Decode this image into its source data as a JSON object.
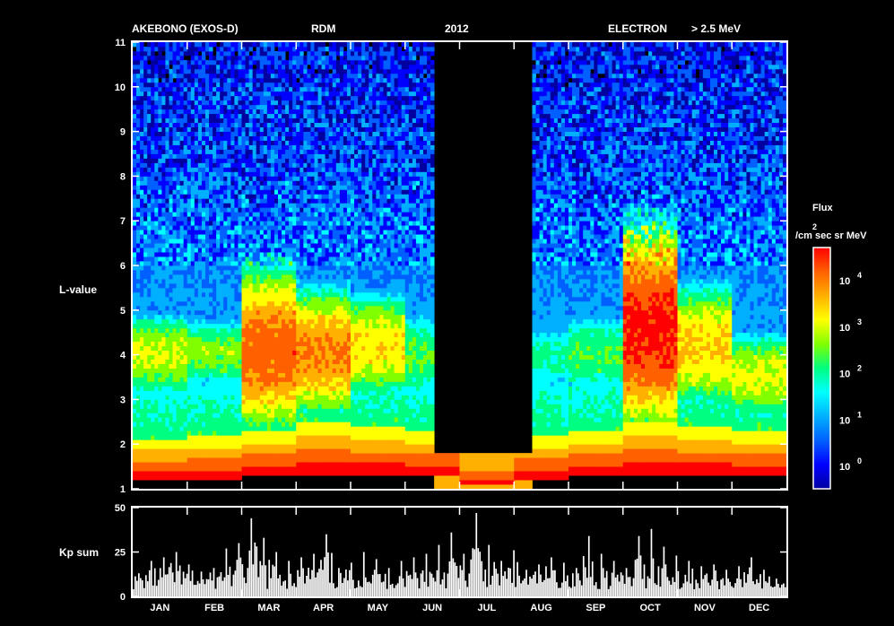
{
  "header": {
    "mission": "AKEBONO (EXOS-D)",
    "instrument": "RDM",
    "year": "2012",
    "species": "ELECTRON",
    "energy": "> 2.5 MeV"
  },
  "main_panel": {
    "ylabel": "L-value",
    "ylim": [
      1,
      11
    ],
    "yticks": [
      "1",
      "2",
      "3",
      "4",
      "5",
      "6",
      "7",
      "8",
      "9",
      "10",
      "11"
    ]
  },
  "colorbar": {
    "title": "Flux",
    "unit_exponent": "2",
    "unit": "/cm sec sr MeV",
    "tick_labels": [
      {
        "base": "10",
        "exp": "0"
      },
      {
        "base": "10",
        "exp": "1"
      },
      {
        "base": "10",
        "exp": "2"
      },
      {
        "base": "10",
        "exp": "3"
      },
      {
        "base": "10",
        "exp": "4"
      }
    ],
    "colors": [
      "#0000a0",
      "#0000ff",
      "#0060ff",
      "#00b0ff",
      "#00ffff",
      "#00ff80",
      "#80ff00",
      "#ffff00",
      "#ffb000",
      "#ff6000",
      "#ff0000"
    ]
  },
  "kp_panel": {
    "ylabel": "Kp sum",
    "yticks": [
      "0",
      "25",
      "50"
    ],
    "ylim": [
      0,
      50
    ]
  },
  "months": [
    "JAN",
    "FEB",
    "MAR",
    "APR",
    "MAY",
    "JUN",
    "JUL",
    "AUG",
    "SEP",
    "OCT",
    "NOV",
    "DEC"
  ],
  "chart_data": {
    "type": "heatmap",
    "title": "AKEBONO (EXOS-D) RDM 2012 ELECTRON > 2.5 MeV",
    "xlabel": "",
    "ylabel": "L-value",
    "x_categories": [
      "JAN",
      "FEB",
      "MAR",
      "APR",
      "MAY",
      "JUN",
      "JUL",
      "AUG",
      "SEP",
      "OCT",
      "NOV",
      "DEC"
    ],
    "ylim": [
      1,
      11
    ],
    "colorbar_log10_range": [
      -0.5,
      4.7
    ],
    "colorbar_label": "Flux /cm2 sec sr MeV",
    "data_gap": {
      "start_month_fraction": 5.55,
      "end_month_fraction": 7.35,
      "note": "no data"
    },
    "flux_profile_by_month": [
      {
        "month": "JAN",
        "inner_belt_L": [
          1.2,
          2.1
        ],
        "outer_belt_L": [
          3.6,
          4.4
        ],
        "outer_peak_log_flux": 2.9
      },
      {
        "month": "FEB",
        "inner_belt_L": [
          1.2,
          2.2
        ],
        "outer_belt_L": [
          3.8,
          4.3
        ],
        "outer_peak_log_flux": 2.6
      },
      {
        "month": "MAR",
        "inner_belt_L": [
          1.3,
          2.3
        ],
        "outer_belt_L": [
          3.0,
          5.2
        ],
        "outer_peak_log_flux": 4.0
      },
      {
        "month": "APR",
        "inner_belt_L": [
          1.3,
          2.5
        ],
        "outer_belt_L": [
          3.3,
          4.8
        ],
        "outer_peak_log_flux": 3.8
      },
      {
        "month": "MAY",
        "inner_belt_L": [
          1.3,
          2.4
        ],
        "outer_belt_L": [
          3.6,
          4.8
        ],
        "outer_peak_log_flux": 3.2
      },
      {
        "month": "JUN",
        "inner_belt_L": [
          1.3,
          2.3
        ],
        "outer_belt_L": [
          3.5,
          4.5
        ],
        "outer_peak_log_flux": 2.4
      },
      {
        "month": "JUL",
        "inner_belt_L": [
          1.1,
          1.7
        ],
        "outer_belt_L": [
          0,
          0
        ],
        "outer_peak_log_flux": 0
      },
      {
        "month": "AUG",
        "inner_belt_L": [
          1.2,
          2.2
        ],
        "outer_belt_L": [
          3.6,
          4.3
        ],
        "outer_peak_log_flux": 2.0
      },
      {
        "month": "SEP",
        "inner_belt_L": [
          1.3,
          2.3
        ],
        "outer_belt_L": [
          3.5,
          4.5
        ],
        "outer_peak_log_flux": 2.3
      },
      {
        "month": "OCT",
        "inner_belt_L": [
          1.3,
          2.5
        ],
        "outer_belt_L": [
          3.2,
          6.0
        ],
        "outer_peak_log_flux": 4.4
      },
      {
        "month": "NOV",
        "inner_belt_L": [
          1.3,
          2.4
        ],
        "outer_belt_L": [
          3.4,
          5.0
        ],
        "outer_peak_log_flux": 3.3
      },
      {
        "month": "DEC",
        "inner_belt_L": [
          1.3,
          2.3
        ],
        "outer_belt_L": [
          3.0,
          4.0
        ],
        "outer_peak_log_flux": 2.9
      }
    ],
    "kp_sum_weekly_max": [
      {
        "week": 1,
        "value": 13
      },
      {
        "week": 2,
        "value": 20
      },
      {
        "week": 3,
        "value": 22
      },
      {
        "week": 4,
        "value": 25
      },
      {
        "week": 5,
        "value": 18
      },
      {
        "week": 6,
        "value": 14
      },
      {
        "week": 7,
        "value": 16
      },
      {
        "week": 8,
        "value": 27
      },
      {
        "week": 9,
        "value": 30
      },
      {
        "week": 10,
        "value": 44
      },
      {
        "week": 11,
        "value": 33
      },
      {
        "week": 12,
        "value": 25
      },
      {
        "week": 13,
        "value": 20
      },
      {
        "week": 14,
        "value": 22
      },
      {
        "week": 15,
        "value": 24
      },
      {
        "week": 16,
        "value": 35
      },
      {
        "week": 17,
        "value": 16
      },
      {
        "week": 18,
        "value": 19
      },
      {
        "week": 19,
        "value": 25
      },
      {
        "week": 20,
        "value": 21
      },
      {
        "week": 21,
        "value": 16
      },
      {
        "week": 22,
        "value": 20
      },
      {
        "week": 23,
        "value": 22
      },
      {
        "week": 24,
        "value": 24
      },
      {
        "week": 25,
        "value": 29
      },
      {
        "week": 26,
        "value": 36
      },
      {
        "week": 27,
        "value": 24
      },
      {
        "week": 28,
        "value": 47
      },
      {
        "week": 29,
        "value": 29
      },
      {
        "week": 30,
        "value": 20
      },
      {
        "week": 31,
        "value": 26
      },
      {
        "week": 32,
        "value": 15
      },
      {
        "week": 33,
        "value": 18
      },
      {
        "week": 34,
        "value": 22
      },
      {
        "week": 35,
        "value": 19
      },
      {
        "week": 36,
        "value": 16
      },
      {
        "week": 37,
        "value": 34
      },
      {
        "week": 38,
        "value": 24
      },
      {
        "week": 39,
        "value": 20
      },
      {
        "week": 40,
        "value": 16
      },
      {
        "week": 41,
        "value": 34
      },
      {
        "week": 42,
        "value": 38
      },
      {
        "week": 43,
        "value": 28
      },
      {
        "week": 44,
        "value": 23
      },
      {
        "week": 45,
        "value": 20
      },
      {
        "week": 46,
        "value": 17
      },
      {
        "week": 47,
        "value": 18
      },
      {
        "week": 48,
        "value": 15
      },
      {
        "week": 49,
        "value": 17
      },
      {
        "week": 50,
        "value": 22
      },
      {
        "week": 51,
        "value": 15
      },
      {
        "week": 52,
        "value": 10
      }
    ]
  }
}
